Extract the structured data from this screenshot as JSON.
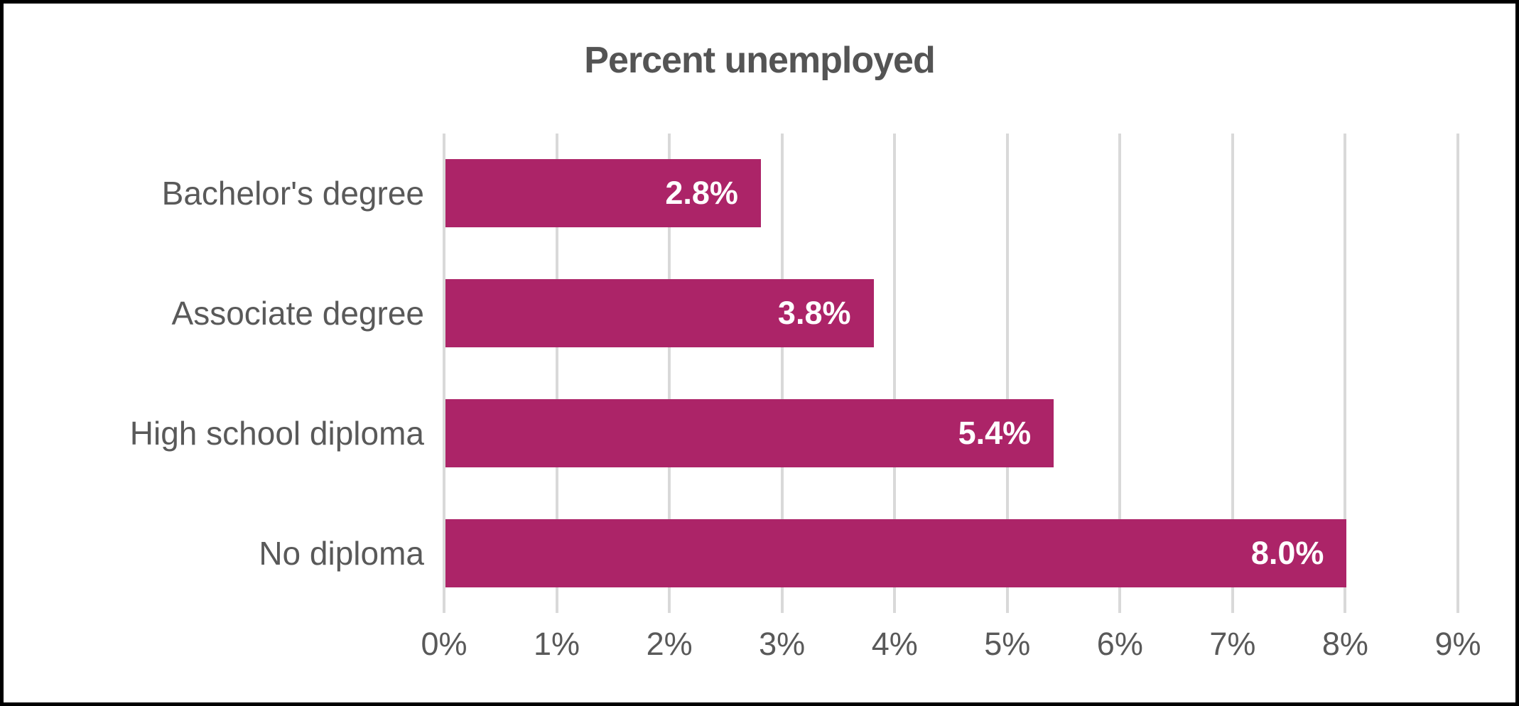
{
  "chart_data": {
    "type": "bar",
    "orientation": "horizontal",
    "title": "Percent unemployed",
    "categories": [
      "Bachelor's degree",
      "Associate degree",
      "High school diploma",
      "No diploma"
    ],
    "values": [
      2.8,
      3.8,
      5.4,
      8.0
    ],
    "data_labels": [
      "2.8%",
      "3.8%",
      "5.4%",
      "8.0%"
    ],
    "x_ticks": [
      "0%",
      "1%",
      "2%",
      "3%",
      "4%",
      "5%",
      "6%",
      "7%",
      "8%",
      "9%"
    ],
    "x_tick_values": [
      0,
      1,
      2,
      3,
      4,
      5,
      6,
      7,
      8,
      9
    ],
    "xlim": [
      0,
      9
    ],
    "grid": "vertical",
    "legend": "none",
    "colors": {
      "bar": "#AC2468",
      "title": "#545454",
      "category_label": "#595959",
      "tick_label": "#595959",
      "gridline": "#D9D9D9",
      "data_label": "#FFFFFF",
      "border": "#000000",
      "background": "#FFFFFF"
    }
  }
}
